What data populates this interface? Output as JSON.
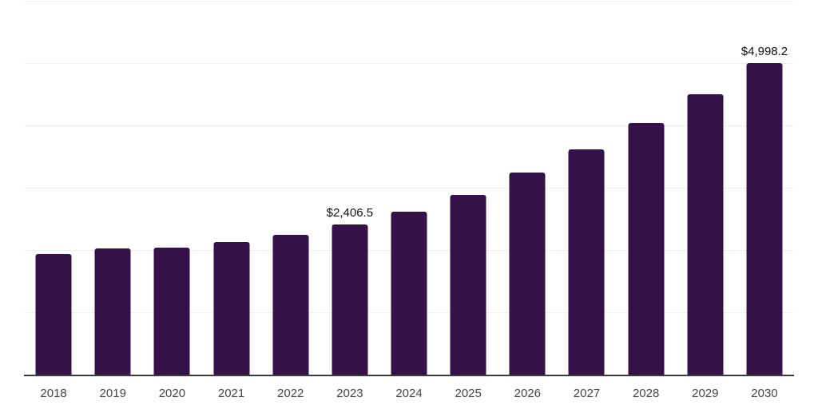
{
  "chart": {
    "colors": {
      "background": "#ffffff",
      "bar": "#351148",
      "grid": "#f0f0f0",
      "axis_line": "#3b3b3b",
      "tick_label": "#454545",
      "data_label": "#101010"
    }
  },
  "chart_data": {
    "type": "bar",
    "title": "",
    "xlabel": "",
    "ylabel": "",
    "legend": "none",
    "grid": "horizontal",
    "categories": [
      "2018",
      "2019",
      "2020",
      "2021",
      "2022",
      "2023",
      "2024",
      "2025",
      "2026",
      "2027",
      "2028",
      "2029",
      "2030"
    ],
    "values": [
      1938,
      2023,
      2045,
      2131,
      2246,
      2406.5,
      2613,
      2891,
      3241,
      3618,
      4045,
      4502,
      4998.2
    ],
    "data_labels": [
      null,
      null,
      null,
      null,
      null,
      "$2,406.5",
      null,
      null,
      null,
      null,
      null,
      null,
      "$4,998.2"
    ],
    "ylim": [
      0,
      6000
    ],
    "gridline_values": [
      1000,
      2000,
      3000,
      4000,
      5000,
      6000
    ]
  }
}
